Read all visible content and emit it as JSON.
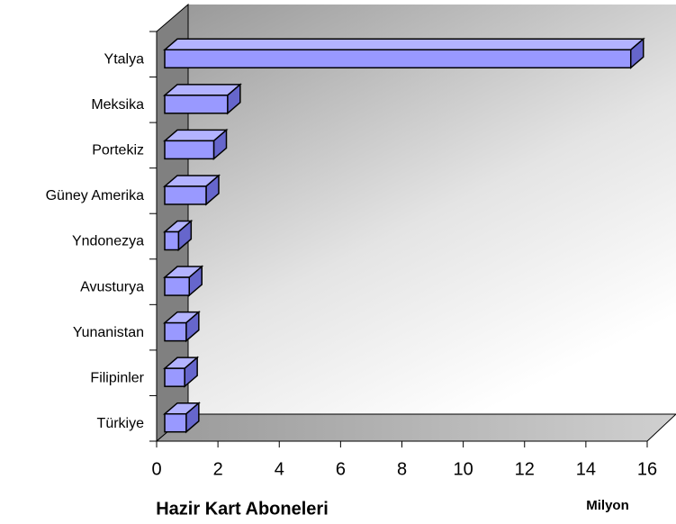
{
  "chart_data": {
    "type": "bar3d_horizontal",
    "categories": [
      "Ytalya",
      "Meksika",
      "Portekiz",
      "Güney Amerika",
      "Yndonezya",
      "Avusturya",
      "Yunanistan",
      "Filipinler",
      "Türkiye"
    ],
    "values": [
      15.2,
      2.05,
      1.6,
      1.35,
      0.45,
      0.8,
      0.7,
      0.65,
      0.7
    ],
    "color": "#9999ff",
    "xlim": [
      0,
      16
    ],
    "xticks": [
      0,
      2,
      4,
      6,
      8,
      10,
      12,
      14,
      16
    ],
    "xlabel": "Hazir Kart Aboneleri",
    "unit_label": "Milyon"
  }
}
